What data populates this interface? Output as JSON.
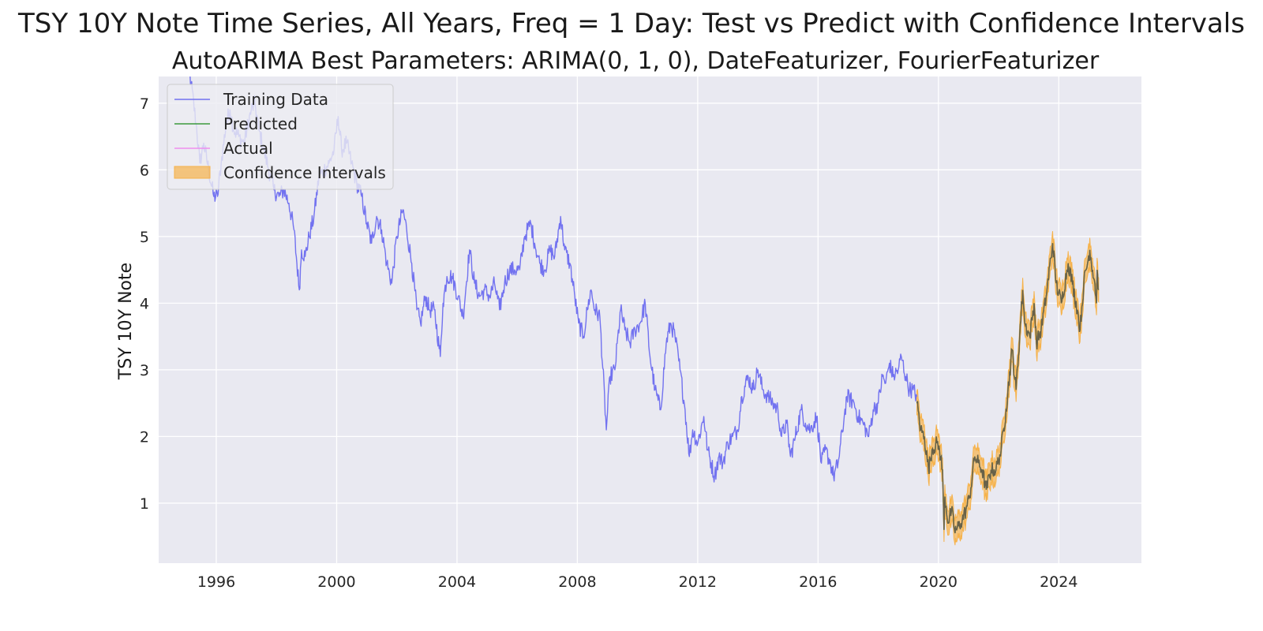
{
  "chart_data": {
    "type": "line",
    "title": "TSY 10Y Note Time Series, All Years, Freq = 1 Day: Test vs Predict with Confidence Intervals",
    "subtitle": "AutoARIMA Best Parameters: ARIMA(0, 1, 0), DateFeaturizer, FourierFeaturizer",
    "xlabel": "",
    "ylabel": "TSY 10Y Note",
    "xlim": [
      "1994-02-01",
      "2026-10-01"
    ],
    "ylim": [
      0.1,
      7.4
    ],
    "x_ticks": [
      "1996",
      "2000",
      "2004",
      "2008",
      "2012",
      "2016",
      "2020",
      "2024"
    ],
    "y_ticks": [
      "1",
      "2",
      "3",
      "4",
      "5",
      "6",
      "7"
    ],
    "grid": true,
    "legend_position": "top-left",
    "legend": [
      {
        "label": "Training Data",
        "kind": "line",
        "color": "#7272f0"
      },
      {
        "label": "Predicted",
        "kind": "line",
        "color": "#3c9a3c"
      },
      {
        "label": "Actual",
        "kind": "line",
        "color": "#ee8eee"
      },
      {
        "label": "Confidence Intervals",
        "kind": "patch",
        "color": "#f6b24a"
      }
    ],
    "colors": {
      "background": "#e9e9f1",
      "grid": "#ffffff",
      "training": "#7272f0",
      "predicted": "#3c9a3c",
      "actual": "#ee8eee",
      "confidence": "#f6b24a",
      "overlap": "#6b5a4a"
    },
    "ci_halfwidth": 0.18,
    "series": [
      {
        "name": "Training Data",
        "x": [
          "1995-01-03",
          "1995-03-01",
          "1995-05-01",
          "1995-06-15",
          "1995-08-01",
          "1995-10-01",
          "1995-12-01",
          "1996-01-15",
          "1996-03-01",
          "1996-05-01",
          "1996-06-15",
          "1996-08-01",
          "1996-10-01",
          "1996-12-01",
          "1997-03-01",
          "1997-04-15",
          "1997-06-01",
          "1997-08-01",
          "1997-10-01",
          "1997-12-01",
          "1998-02-01",
          "1998-04-01",
          "1998-06-01",
          "1998-08-01",
          "1998-10-05",
          "1998-11-01",
          "1998-12-15",
          "1999-02-01",
          "1999-04-01",
          "1999-06-01",
          "1999-08-01",
          "1999-10-01",
          "1999-12-01",
          "2000-01-20",
          "2000-03-01",
          "2000-05-01",
          "2000-07-01",
          "2000-09-01",
          "2000-11-01",
          "2001-01-01",
          "2001-03-01",
          "2001-05-01",
          "2001-07-01",
          "2001-09-01",
          "2001-11-01",
          "2002-01-01",
          "2002-03-15",
          "2002-05-01",
          "2002-07-01",
          "2002-09-01",
          "2002-10-15",
          "2002-12-15",
          "2003-02-01",
          "2003-04-01",
          "2003-06-13",
          "2003-07-15",
          "2003-09-01",
          "2003-11-01",
          "2004-01-15",
          "2004-03-15",
          "2004-06-01",
          "2004-08-01",
          "2004-10-01",
          "2004-12-01",
          "2005-02-01",
          "2005-04-01",
          "2005-06-01",
          "2005-08-01",
          "2005-10-01",
          "2005-12-01",
          "2006-02-01",
          "2006-04-01",
          "2006-06-15",
          "2006-08-01",
          "2006-10-01",
          "2006-12-01",
          "2007-02-01",
          "2007-04-01",
          "2007-06-12",
          "2007-08-01",
          "2007-10-01",
          "2007-12-01",
          "2008-01-15",
          "2008-03-15",
          "2008-05-01",
          "2008-06-15",
          "2008-08-01",
          "2008-10-01",
          "2008-12-18",
          "2009-02-01",
          "2009-04-01",
          "2009-06-10",
          "2009-08-01",
          "2009-10-01",
          "2009-12-01",
          "2010-02-01",
          "2010-04-05",
          "2010-06-01",
          "2010-08-01",
          "2010-10-08",
          "2010-12-15",
          "2011-02-08",
          "2011-04-01",
          "2011-06-01",
          "2011-08-01",
          "2011-09-22",
          "2011-11-01",
          "2012-01-01",
          "2012-03-15",
          "2012-05-01",
          "2012-07-25",
          "2012-09-15",
          "2012-11-01",
          "2013-01-01",
          "2013-03-01",
          "2013-05-01",
          "2013-06-20",
          "2013-09-05",
          "2013-11-01",
          "2014-01-01",
          "2014-03-01",
          "2014-05-01",
          "2014-07-01",
          "2014-09-01",
          "2014-10-15",
          "2014-12-15",
          "2015-02-01",
          "2015-04-01",
          "2015-06-10",
          "2015-08-01",
          "2015-10-01",
          "2015-12-15",
          "2016-02-11",
          "2016-04-01",
          "2016-06-01",
          "2016-07-08",
          "2016-09-01",
          "2016-11-15",
          "2016-12-16",
          "2017-03-15",
          "2017-05-01",
          "2017-07-01",
          "2017-09-08",
          "2017-11-01",
          "2018-01-01",
          "2018-02-21",
          "2018-04-01",
          "2018-05-17",
          "2018-07-01",
          "2018-09-01",
          "2018-10-08",
          "2018-12-01",
          "2019-01-15",
          "2019-03-01",
          "2019-04-15"
        ],
        "y": [
          7.8,
          7.3,
          6.7,
          6.1,
          6.4,
          6.0,
          5.6,
          5.6,
          6.1,
          6.7,
          6.9,
          6.6,
          6.5,
          6.4,
          6.9,
          7.0,
          6.6,
          6.3,
          6.0,
          5.7,
          5.6,
          5.7,
          5.5,
          5.1,
          4.2,
          4.8,
          4.7,
          5.0,
          5.3,
          5.9,
          6.0,
          6.1,
          6.3,
          6.8,
          6.3,
          6.4,
          6.1,
          5.8,
          5.6,
          5.2,
          4.9,
          5.3,
          5.1,
          4.6,
          4.3,
          5.0,
          5.4,
          5.1,
          4.6,
          3.9,
          3.7,
          4.1,
          3.9,
          3.9,
          3.2,
          4.0,
          4.4,
          4.4,
          4.1,
          3.8,
          4.8,
          4.3,
          4.1,
          4.2,
          4.1,
          4.3,
          3.9,
          4.3,
          4.5,
          4.5,
          4.5,
          5.0,
          5.2,
          4.9,
          4.6,
          4.5,
          4.8,
          4.7,
          5.3,
          4.8,
          4.6,
          4.1,
          3.7,
          3.5,
          3.9,
          4.2,
          3.9,
          3.8,
          2.1,
          2.9,
          3.0,
          3.9,
          3.6,
          3.4,
          3.6,
          3.7,
          4.0,
          3.2,
          2.7,
          2.4,
          3.4,
          3.7,
          3.5,
          3.0,
          2.4,
          1.7,
          2.1,
          1.9,
          2.3,
          1.8,
          1.4,
          1.7,
          1.6,
          1.9,
          2.0,
          2.1,
          2.6,
          2.9,
          2.7,
          3.0,
          2.7,
          2.6,
          2.5,
          2.4,
          2.0,
          2.2,
          1.7,
          2.0,
          2.4,
          2.2,
          2.1,
          2.3,
          1.6,
          1.8,
          1.6,
          1.4,
          1.6,
          2.3,
          2.6,
          2.5,
          2.3,
          2.2,
          2.0,
          2.4,
          2.5,
          2.9,
          2.8,
          3.1,
          2.9,
          3.0,
          3.2,
          2.9,
          2.7,
          2.7,
          2.6
        ]
      },
      {
        "name": "Predicted",
        "x": [
          "2019-04-15",
          "2019-06-01",
          "2019-07-15",
          "2019-09-03",
          "2019-10-15",
          "2019-12-15",
          "2020-01-15",
          "2020-02-20",
          "2020-03-09",
          "2020-03-20",
          "2020-05-01",
          "2020-06-08",
          "2020-07-15",
          "2020-08-04",
          "2020-10-01",
          "2020-12-01",
          "2021-01-15",
          "2021-03-18",
          "2021-05-01",
          "2021-06-15",
          "2021-08-04",
          "2021-10-01",
          "2021-12-01",
          "2022-02-01",
          "2022-04-01",
          "2022-06-14",
          "2022-08-01",
          "2022-10-21",
          "2022-11-15",
          "2023-01-15",
          "2023-03-08",
          "2023-04-05",
          "2023-06-01",
          "2023-08-01",
          "2023-10-19",
          "2023-12-01",
          "2024-02-01",
          "2024-04-25",
          "2024-06-15",
          "2024-08-15",
          "2024-09-16",
          "2024-11-01",
          "2025-01-13",
          "2025-02-15",
          "2025-03-15",
          "2025-04-04",
          "2025-04-11",
          "2025-04-30"
        ],
        "y": [
          2.5,
          2.1,
          2.0,
          1.5,
          1.8,
          1.9,
          1.8,
          1.5,
          0.6,
          1.1,
          0.7,
          0.9,
          0.6,
          0.6,
          0.7,
          0.9,
          1.1,
          1.7,
          1.6,
          1.5,
          1.2,
          1.5,
          1.5,
          1.8,
          2.4,
          3.3,
          2.7,
          4.2,
          3.7,
          3.5,
          4.0,
          3.4,
          3.6,
          4.1,
          4.9,
          4.3,
          4.0,
          4.6,
          4.3,
          3.9,
          3.6,
          4.3,
          4.8,
          4.5,
          4.3,
          4.0,
          4.5,
          4.2
        ]
      },
      {
        "name": "Actual",
        "x": [
          "2019-04-15",
          "2019-06-01",
          "2019-07-15",
          "2019-09-03",
          "2019-10-15",
          "2019-12-15",
          "2020-01-15",
          "2020-02-20",
          "2020-03-09",
          "2020-03-20",
          "2020-05-01",
          "2020-06-08",
          "2020-07-15",
          "2020-08-04",
          "2020-10-01",
          "2020-12-01",
          "2021-01-15",
          "2021-03-18",
          "2021-05-01",
          "2021-06-15",
          "2021-08-04",
          "2021-10-01",
          "2021-12-01",
          "2022-02-01",
          "2022-04-01",
          "2022-06-14",
          "2022-08-01",
          "2022-10-21",
          "2022-11-15",
          "2023-01-15",
          "2023-03-08",
          "2023-04-05",
          "2023-06-01",
          "2023-08-01",
          "2023-10-19",
          "2023-12-01",
          "2024-02-01",
          "2024-04-25",
          "2024-06-15",
          "2024-08-15",
          "2024-09-16",
          "2024-11-01",
          "2025-01-13",
          "2025-02-15",
          "2025-03-15",
          "2025-04-04",
          "2025-04-11",
          "2025-04-30"
        ],
        "y": [
          2.5,
          2.1,
          2.0,
          1.5,
          1.8,
          1.9,
          1.8,
          1.5,
          0.6,
          1.1,
          0.7,
          0.9,
          0.6,
          0.6,
          0.7,
          0.9,
          1.1,
          1.7,
          1.6,
          1.5,
          1.2,
          1.5,
          1.5,
          1.8,
          2.4,
          3.3,
          2.7,
          4.2,
          3.7,
          3.5,
          4.0,
          3.4,
          3.6,
          4.1,
          4.9,
          4.3,
          4.0,
          4.6,
          4.3,
          3.9,
          3.6,
          4.3,
          4.8,
          4.5,
          4.3,
          4.0,
          4.5,
          4.2
        ]
      }
    ]
  }
}
